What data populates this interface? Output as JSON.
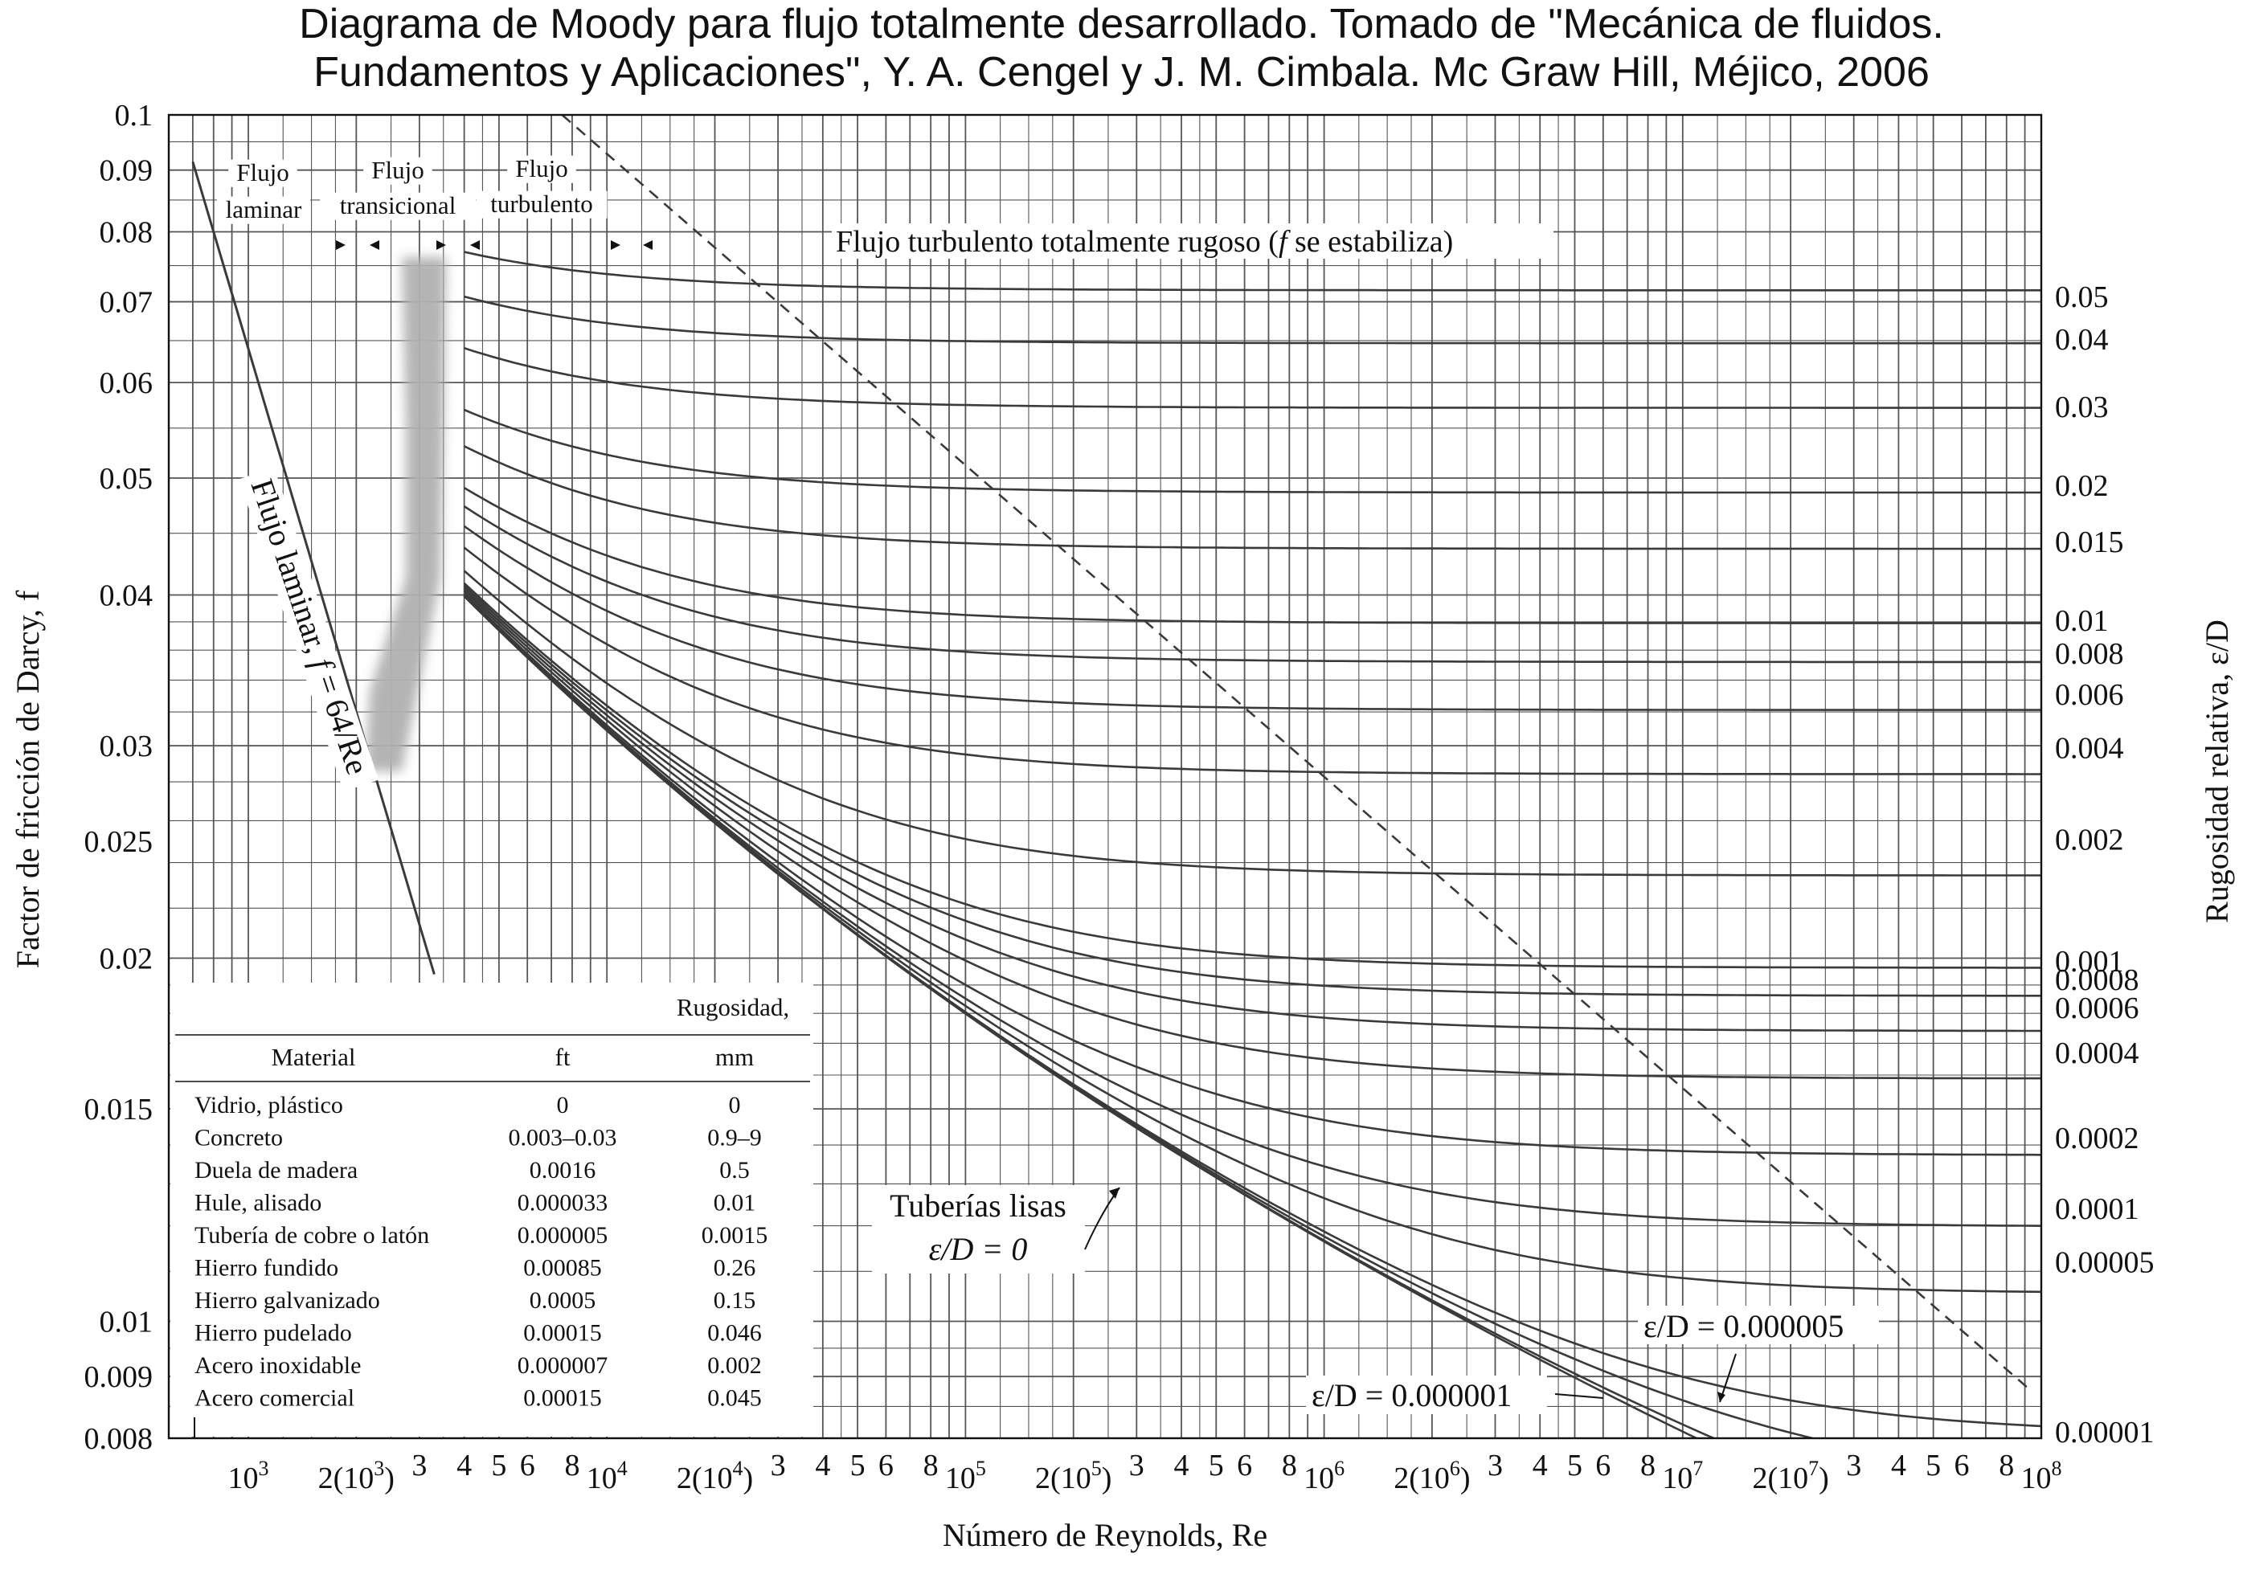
{
  "title_lines": [
    "Diagrama de Moody para flujo totalmente desarrollado. Tomado de \"Mecánica de fluidos.",
    "Fundamentos y Aplicaciones\", Y. A. Cengel y J. M. Cimbala. Mc Graw Hill, Méjico, 2006"
  ],
  "chart_data": {
    "type": "line",
    "xscale": "log",
    "yscale": "log",
    "xlim": [
      600,
      100000000
    ],
    "ylim": [
      0.008,
      0.1
    ],
    "grid": true,
    "xlabel": "Número de Reynolds, Re",
    "ylabel": "Factor de fricción de Darcy, f",
    "y2label": "Rugosidad relativa, ε/D",
    "yticks": [
      {
        "v": 0.1,
        "label": "0.1"
      },
      {
        "v": 0.09,
        "label": "0.09"
      },
      {
        "v": 0.08,
        "label": "0.08"
      },
      {
        "v": 0.07,
        "label": "0.07"
      },
      {
        "v": 0.06,
        "label": "0.06"
      },
      {
        "v": 0.05,
        "label": "0.05"
      },
      {
        "v": 0.04,
        "label": "0.04"
      },
      {
        "v": 0.03,
        "label": "0.03"
      },
      {
        "v": 0.025,
        "label": "0.025"
      },
      {
        "v": 0.02,
        "label": "0.02"
      },
      {
        "v": 0.015,
        "label": "0.015"
      },
      {
        "v": 0.01,
        "label": "0.01"
      },
      {
        "v": 0.009,
        "label": "0.009"
      },
      {
        "v": 0.008,
        "label": "0.008"
      }
    ],
    "xticks": [
      {
        "v": 1000,
        "label": "10",
        "sup": "3"
      },
      {
        "v": 2000,
        "label": "2(10",
        "sup": "3",
        "post": ")"
      },
      {
        "v": 3000,
        "label": "3"
      },
      {
        "v": 4000,
        "label": "4"
      },
      {
        "v": 5000,
        "label": "5"
      },
      {
        "v": 6000,
        "label": "6"
      },
      {
        "v": 8000,
        "label": "8"
      },
      {
        "v": 10000,
        "label": "10",
        "sup": "4"
      },
      {
        "v": 20000,
        "label": "2(10",
        "sup": "4",
        "post": ")"
      },
      {
        "v": 30000,
        "label": "3"
      },
      {
        "v": 40000,
        "label": "4"
      },
      {
        "v": 50000,
        "label": "5"
      },
      {
        "v": 60000,
        "label": "6"
      },
      {
        "v": 80000,
        "label": "8"
      },
      {
        "v": 100000,
        "label": "10",
        "sup": "5"
      },
      {
        "v": 200000,
        "label": "2(10",
        "sup": "5",
        "post": ")"
      },
      {
        "v": 300000,
        "label": "3"
      },
      {
        "v": 400000,
        "label": "4"
      },
      {
        "v": 500000,
        "label": "5"
      },
      {
        "v": 600000,
        "label": "6"
      },
      {
        "v": 800000,
        "label": "8"
      },
      {
        "v": 1000000,
        "label": "10",
        "sup": "6"
      },
      {
        "v": 2000000,
        "label": "2(10",
        "sup": "6",
        "post": ")"
      },
      {
        "v": 3000000,
        "label": "3"
      },
      {
        "v": 4000000,
        "label": "4"
      },
      {
        "v": 5000000,
        "label": "5"
      },
      {
        "v": 6000000,
        "label": "6"
      },
      {
        "v": 8000000,
        "label": "8"
      },
      {
        "v": 10000000,
        "label": "10",
        "sup": "7"
      },
      {
        "v": 20000000,
        "label": "2(10",
        "sup": "7",
        "post": ")"
      },
      {
        "v": 30000000,
        "label": "3"
      },
      {
        "v": 40000000,
        "label": "4"
      },
      {
        "v": 50000000,
        "label": "5"
      },
      {
        "v": 60000000,
        "label": "6"
      },
      {
        "v": 80000000,
        "label": "8"
      },
      {
        "v": 100000000,
        "label": "10",
        "sup": "8"
      }
    ],
    "laminar_series": {
      "name": "Flujo laminar, f = 64/Re",
      "formula": "64/Re",
      "x_range": [
        700,
        3300
      ]
    },
    "roughness_series": [
      {
        "eps": 0.05,
        "label": "0.05"
      },
      {
        "eps": 0.04,
        "label": "0.04"
      },
      {
        "eps": 0.03,
        "label": "0.03"
      },
      {
        "eps": 0.02,
        "label": "0.02"
      },
      {
        "eps": 0.015,
        "label": "0.015"
      },
      {
        "eps": 0.01,
        "label": "0.01"
      },
      {
        "eps": 0.008,
        "label": "0.008"
      },
      {
        "eps": 0.006,
        "label": "0.006"
      },
      {
        "eps": 0.004,
        "label": "0.004"
      },
      {
        "eps": 0.002,
        "label": "0.002"
      },
      {
        "eps": 0.001,
        "label": "0.001"
      },
      {
        "eps": 0.0008,
        "label": "0.0008"
      },
      {
        "eps": 0.0006,
        "label": "0.0006"
      },
      {
        "eps": 0.0004,
        "label": "0.0004"
      },
      {
        "eps": 0.0002,
        "label": "0.0002"
      },
      {
        "eps": 0.0001,
        "label": "0.0001"
      },
      {
        "eps": 5e-05,
        "label": "0.00005"
      },
      {
        "eps": 1e-05,
        "label": "0.00001"
      },
      {
        "eps": 5e-06,
        "label": ""
      },
      {
        "eps": 1e-06,
        "label": ""
      },
      {
        "eps": 0,
        "label": ""
      }
    ],
    "fully_rough_boundary": {
      "x": [
        7500,
        92000000
      ],
      "y": [
        0.1,
        0.0088
      ]
    },
    "annotations": {
      "laminar_region": [
        "Flujo",
        "laminar"
      ],
      "transitional_region": [
        "Flujo",
        "transicional"
      ],
      "turbulent_region": [
        "Flujo",
        "turbulento"
      ],
      "fully_rough": [
        "Flujo turbulento totalmente rugoso (",
        "f",
        " se estabiliza)"
      ],
      "laminar_line": [
        "Flujo laminar, ",
        "f",
        " = 64/Re"
      ],
      "smooth_pipes": [
        "Tuberías lisas",
        "ε/D = 0"
      ],
      "eps_000005": "ε/D = 0.000005",
      "eps_000001": "ε/D = 0.000001"
    },
    "table": {
      "header_group": "Rugosidad,",
      "columns": [
        "Material",
        "ft",
        "mm"
      ],
      "rows": [
        [
          "Vidrio, plástico",
          "0",
          "0"
        ],
        [
          "Concreto",
          "0.003–0.03",
          "0.9–9"
        ],
        [
          "Duela de madera",
          "0.0016",
          "0.5"
        ],
        [
          "Hule, alisado",
          "0.000033",
          "0.01"
        ],
        [
          "Tubería de cobre o latón",
          "0.000005",
          "0.0015"
        ],
        [
          "Hierro fundido",
          "0.00085",
          "0.26"
        ],
        [
          "Hierro galvanizado",
          "0.0005",
          "0.15"
        ],
        [
          "Hierro pudelado",
          "0.00015",
          "0.046"
        ],
        [
          "Acero inoxidable",
          "0.000007",
          "0.002"
        ],
        [
          "Acero comercial",
          "0.00015",
          "0.045"
        ]
      ]
    }
  },
  "colors": {
    "ink": "#111111",
    "curve": "#3a3a3a",
    "grid": "#555555",
    "band": "#b0b0b0"
  }
}
